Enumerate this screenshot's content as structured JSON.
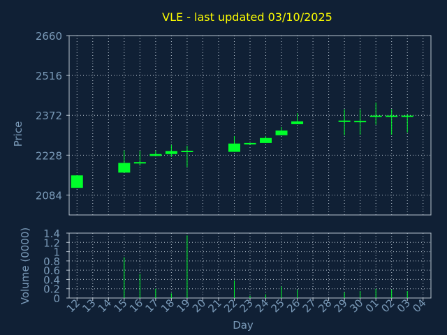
{
  "colors": {
    "background": "#102035",
    "title": "#ffff00",
    "axis_text": "#7a9ab8",
    "grid": "#b8c4d0",
    "candle": "#00ff2a"
  },
  "chart_data": [
    {
      "type": "candlestick",
      "title": "VLE - last updated 03/10/2025",
      "ylabel": "Price",
      "ylim": [
        2012,
        2660
      ],
      "yticks": [
        2084,
        2228,
        2372,
        2516,
        2660
      ],
      "grid": true,
      "categories": [
        "12",
        "13",
        "14",
        "15",
        "16",
        "17",
        "18",
        "19",
        "20",
        "21",
        "22",
        "23",
        "24",
        "25",
        "26",
        "27",
        "28",
        "29",
        "30",
        "01",
        "02",
        "03",
        "04"
      ],
      "candles": [
        {
          "day": "12",
          "open": 2110,
          "close": 2155,
          "high": 2155,
          "low": 2110
        },
        {
          "day": "15",
          "open": 2165,
          "close": 2200,
          "high": 2245,
          "low": 2165
        },
        {
          "day": "16",
          "open": 2198,
          "close": 2203,
          "high": 2244,
          "low": 2190
        },
        {
          "day": "17",
          "open": 2225,
          "close": 2232,
          "high": 2245,
          "low": 2225
        },
        {
          "day": "18",
          "open": 2232,
          "close": 2243,
          "high": 2265,
          "low": 2222
        },
        {
          "day": "19",
          "open": 2240,
          "close": 2244,
          "high": 2262,
          "low": 2185
        },
        {
          "day": "22",
          "open": 2240,
          "close": 2270,
          "high": 2297,
          "low": 2240
        },
        {
          "day": "23",
          "open": 2269,
          "close": 2272,
          "high": 2272,
          "low": 2267
        },
        {
          "day": "24",
          "open": 2272,
          "close": 2290,
          "high": 2297,
          "low": 2272
        },
        {
          "day": "25",
          "open": 2300,
          "close": 2317,
          "high": 2330,
          "low": 2300
        },
        {
          "day": "26",
          "open": 2340,
          "close": 2350,
          "high": 2380,
          "low": 2340
        },
        {
          "day": "29",
          "open": 2350,
          "close": 2353,
          "high": 2394,
          "low": 2300
        },
        {
          "day": "30",
          "open": 2350,
          "close": 2352,
          "high": 2394,
          "low": 2302
        },
        {
          "day": "01",
          "open": 2367,
          "close": 2371,
          "high": 2418,
          "low": 2338
        },
        {
          "day": "02",
          "open": 2367,
          "close": 2371,
          "high": 2394,
          "low": 2302
        },
        {
          "day": "03",
          "open": 2367,
          "close": 2371,
          "high": 2375,
          "low": 2310
        }
      ]
    },
    {
      "type": "bar",
      "ylabel": "Volume (0000)",
      "xlabel": "Day",
      "ylim": [
        0,
        1.4
      ],
      "yticks": [
        0,
        0.2,
        0.4,
        0.6,
        0.8,
        1,
        1.2,
        1.4
      ],
      "grid": true,
      "categories": [
        "12",
        "13",
        "14",
        "15",
        "16",
        "17",
        "18",
        "19",
        "20",
        "21",
        "22",
        "23",
        "24",
        "25",
        "26",
        "27",
        "28",
        "29",
        "30",
        "01",
        "02",
        "03",
        "04"
      ],
      "values": [
        0,
        0,
        0,
        0.88,
        0.52,
        0.2,
        0.1,
        1.35,
        0,
        0,
        0.38,
        0.05,
        0.08,
        0.25,
        0.18,
        0,
        0,
        0.12,
        0.15,
        0.2,
        0.18,
        0.15,
        0
      ]
    }
  ]
}
